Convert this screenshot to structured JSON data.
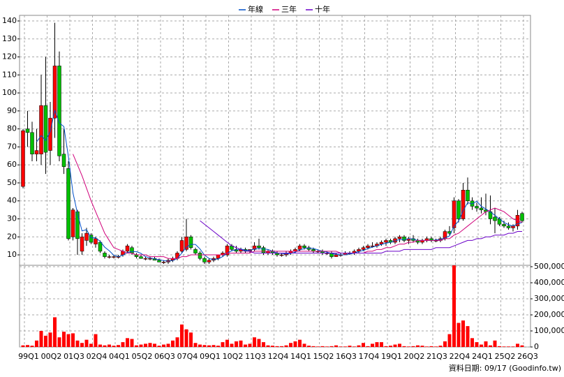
{
  "chart_data": [
    {
      "type": "candlestick",
      "legend": "top",
      "up_color": "#ff0000",
      "down_color": "#00c000",
      "wick_color": "#000000",
      "grid": true,
      "categories": [
        "99Q1",
        null,
        null,
        null,
        null,
        "00Q2",
        null,
        null,
        null,
        null,
        "01Q3",
        null,
        null,
        null,
        null,
        "02Q4",
        null,
        null,
        null,
        null,
        "04Q1",
        null,
        null,
        null,
        null,
        "05Q2",
        null,
        null,
        null,
        null,
        "06Q3",
        null,
        null,
        null,
        null,
        "07Q4",
        null,
        null,
        null,
        null,
        "09Q1",
        null,
        null,
        null,
        null,
        "10Q2",
        null,
        null,
        null,
        null,
        "11Q3",
        null,
        null,
        null,
        null,
        "12Q4",
        null,
        null,
        null,
        null,
        "14Q1",
        null,
        null,
        null,
        null,
        "15Q2",
        null,
        null,
        null,
        null,
        "16Q3",
        null,
        null,
        null,
        null,
        "17Q4",
        null,
        null,
        null,
        null,
        "19Q1",
        null,
        null,
        null,
        null,
        "20Q2",
        null,
        null,
        null,
        null,
        "21Q3",
        null,
        null,
        null,
        null,
        "22Q4",
        null,
        null,
        null,
        null,
        "24Q1",
        null,
        null,
        null,
        null,
        "25Q2",
        null,
        null,
        null,
        null,
        "26Q3"
      ],
      "open": [
        48,
        80,
        78,
        66,
        66,
        93,
        68,
        86,
        115,
        66,
        58,
        20,
        34,
        12,
        18,
        21,
        16,
        17,
        11,
        9,
        9,
        9,
        10,
        12,
        14,
        10,
        9,
        8,
        8,
        8,
        7,
        6,
        6,
        7,
        8,
        12,
        13,
        20,
        13,
        11,
        8,
        6,
        7,
        8,
        10,
        10,
        15,
        13,
        12,
        13,
        12,
        13,
        15,
        14,
        11,
        12,
        11,
        10,
        10,
        11,
        12,
        13,
        15,
        14,
        13,
        12,
        12,
        11,
        11,
        9,
        10,
        10,
        11,
        11,
        12,
        13,
        14,
        15,
        15,
        16,
        17,
        18,
        17,
        19,
        20,
        18,
        19,
        18,
        17,
        18,
        19,
        18,
        18,
        19,
        23,
        25,
        40,
        30,
        46,
        40,
        37,
        36,
        35,
        34,
        31,
        30,
        27,
        26,
        25,
        26,
        33
      ],
      "high": [
        80,
        90,
        84,
        80,
        110,
        120,
        95,
        139,
        123,
        80,
        62,
        36,
        35,
        22,
        25,
        22,
        20,
        18,
        12,
        10,
        10,
        10,
        13,
        16,
        15,
        11,
        10,
        9,
        9,
        9,
        8,
        7,
        8,
        9,
        12,
        20,
        30,
        21,
        14,
        12,
        9,
        8,
        9,
        10,
        12,
        16,
        16,
        15,
        14,
        14,
        13,
        17,
        19,
        15,
        13,
        13,
        12,
        11,
        12,
        13,
        14,
        16,
        16,
        15,
        14,
        13,
        13,
        12,
        12,
        11,
        11,
        12,
        12,
        13,
        14,
        15,
        16,
        17,
        17,
        18,
        19,
        19,
        20,
        21,
        21,
        20,
        21,
        19,
        19,
        20,
        20,
        19,
        20,
        24,
        26,
        42,
        41,
        50,
        53,
        42,
        39,
        42,
        44,
        43,
        36,
        31,
        29,
        28,
        27,
        35,
        34
      ],
      "low": [
        47,
        70,
        62,
        62,
        60,
        55,
        60,
        75,
        62,
        55,
        18,
        18,
        10,
        10,
        15,
        16,
        14,
        11,
        8,
        8,
        8,
        8,
        9,
        11,
        10,
        8,
        8,
        7,
        7,
        7,
        6,
        5,
        5,
        6,
        7,
        11,
        12,
        13,
        10,
        7,
        5,
        5,
        6,
        7,
        9,
        9,
        12,
        11,
        11,
        11,
        11,
        12,
        13,
        10,
        10,
        10,
        9,
        9,
        9,
        10,
        11,
        12,
        13,
        12,
        11,
        11,
        10,
        10,
        8,
        9,
        9,
        10,
        10,
        10,
        11,
        12,
        13,
        14,
        14,
        15,
        15,
        16,
        16,
        17,
        17,
        16,
        17,
        16,
        16,
        17,
        17,
        17,
        17,
        18,
        21,
        22,
        28,
        29,
        38,
        35,
        34,
        33,
        32,
        27,
        22,
        26,
        25,
        24,
        23,
        24,
        28
      ],
      "close": [
        79,
        78,
        66,
        68,
        93,
        67,
        86,
        115,
        65,
        59,
        19,
        35,
        19,
        20,
        22,
        17,
        19,
        12,
        9,
        9,
        9,
        9,
        12,
        15,
        11,
        9,
        8,
        8,
        8,
        7,
        6,
        6,
        7,
        8,
        11,
        18,
        20,
        14,
        11,
        8,
        6,
        7,
        8,
        10,
        11,
        15,
        13,
        12,
        13,
        12,
        13,
        15,
        14,
        11,
        12,
        11,
        10,
        10,
        11,
        12,
        13,
        15,
        14,
        13,
        12,
        12,
        11,
        11,
        9,
        10,
        10,
        11,
        11,
        12,
        13,
        14,
        15,
        15,
        16,
        17,
        18,
        17,
        19,
        20,
        18,
        19,
        18,
        17,
        18,
        19,
        18,
        18,
        19,
        23,
        22,
        40,
        30,
        46,
        40,
        37,
        36,
        35,
        34,
        30,
        29,
        27,
        26,
        25,
        26,
        32,
        29
      ],
      "series": [
        {
          "name": "年線",
          "color": "#0050c8",
          "values": [
            null,
            null,
            null,
            72.8,
            76.3,
            73.5,
            78.5,
            90.3,
            83.3,
            81.3,
            64.5,
            44.5,
            33,
            23.3,
            24,
            19.5,
            19.5,
            17.5,
            14.3,
            12.3,
            9.8,
            9,
            9.8,
            11.3,
            11.8,
            11.8,
            10.8,
            9,
            8.3,
            7.8,
            7.3,
            6.8,
            6.5,
            6.8,
            8,
            11,
            14.3,
            15.8,
            15.8,
            13.3,
            9.8,
            8,
            7.3,
            7.8,
            9,
            11,
            12.3,
            12.8,
            13.3,
            12.5,
            12.5,
            13.3,
            13.5,
            13.3,
            13,
            12,
            11,
            10.8,
            10.5,
            10.8,
            11.5,
            12.8,
            13.5,
            13.8,
            13.5,
            12.8,
            12,
            11.5,
            10.8,
            10.3,
            10,
            10,
            10.5,
            11,
            11.8,
            12.5,
            13.5,
            14.3,
            15,
            15.8,
            16.5,
            17,
            17.8,
            18.5,
            18.5,
            19,
            18.8,
            18,
            18,
            18,
            18,
            18.3,
            18.5,
            19.5,
            20.5,
            26,
            28.8,
            34.5,
            39,
            38.3,
            39.8,
            37,
            35.5,
            33.8,
            32,
            30,
            28,
            26.8,
            26,
            27.3,
            28
          ]
        },
        {
          "name": "三年",
          "color": "#d0007a",
          "values": [
            null,
            null,
            null,
            null,
            null,
            null,
            null,
            null,
            null,
            null,
            null,
            66,
            60,
            54,
            47,
            40,
            34,
            28,
            22,
            18,
            14,
            13,
            12,
            11,
            11,
            10,
            10,
            10,
            9,
            9,
            9,
            9,
            8,
            8,
            8,
            9,
            9,
            10,
            10,
            10,
            10,
            10,
            10,
            10,
            10,
            11,
            11,
            11,
            11,
            11,
            11,
            12,
            12,
            12,
            12,
            12,
            12,
            12,
            12,
            12,
            12,
            12,
            12,
            12,
            12,
            12,
            12,
            12,
            12,
            12,
            11,
            11,
            11,
            11,
            11,
            11,
            12,
            12,
            13,
            13,
            14,
            14,
            15,
            16,
            16,
            17,
            17,
            18,
            18,
            18,
            18,
            18,
            18,
            19,
            19,
            21,
            22,
            24,
            26,
            28,
            30,
            32,
            34,
            35,
            36,
            35,
            34,
            32,
            30,
            29,
            28
          ]
        },
        {
          "name": "十年",
          "color": "#6a00c8",
          "values": [
            null,
            null,
            null,
            null,
            null,
            null,
            null,
            null,
            null,
            null,
            null,
            null,
            null,
            null,
            null,
            null,
            null,
            null,
            null,
            null,
            null,
            null,
            null,
            null,
            null,
            null,
            null,
            null,
            null,
            null,
            null,
            null,
            null,
            null,
            null,
            null,
            null,
            null,
            null,
            29,
            27,
            25,
            23,
            21,
            19,
            17,
            15,
            14,
            13,
            12,
            12,
            11,
            11,
            11,
            11,
            11,
            11,
            11,
            11,
            11,
            11,
            11,
            11,
            11,
            11,
            11,
            11,
            11,
            11,
            11,
            11,
            11,
            11,
            11,
            11,
            11,
            11,
            11,
            11,
            11,
            12,
            12,
            12,
            12,
            13,
            13,
            13,
            13,
            13,
            13,
            13,
            14,
            14,
            14,
            14,
            15,
            16,
            17,
            18,
            18,
            19,
            19,
            20,
            20,
            21,
            21,
            21,
            22,
            22,
            23,
            23
          ]
        }
      ],
      "ylim": [
        4.2,
        143.1
      ],
      "yticks": [
        10,
        20,
        30,
        40,
        50,
        60,
        70,
        80,
        90,
        100,
        110,
        120,
        130,
        140
      ],
      "note": "資料日期: 09/17 (Goodinfo.tw)"
    },
    {
      "type": "bar",
      "color": "#ff0000",
      "grid": true,
      "values": [
        10000,
        12000,
        8000,
        40000,
        100000,
        70000,
        90000,
        185000,
        60000,
        95000,
        80000,
        85000,
        40000,
        25000,
        45000,
        20000,
        80000,
        15000,
        10000,
        15000,
        8000,
        12000,
        30000,
        55000,
        50000,
        10000,
        15000,
        20000,
        25000,
        20000,
        8000,
        15000,
        20000,
        40000,
        60000,
        140000,
        110000,
        90000,
        25000,
        15000,
        12000,
        10000,
        12000,
        8000,
        30000,
        45000,
        20000,
        35000,
        40000,
        15000,
        20000,
        60000,
        50000,
        30000,
        10000,
        8000,
        5000,
        5000,
        10000,
        25000,
        35000,
        45000,
        20000,
        8000,
        5000,
        3000,
        5000,
        3000,
        5000,
        10000,
        3000,
        3000,
        8000,
        3000,
        10000,
        25000,
        5000,
        20000,
        30000,
        30000,
        5000,
        8000,
        15000,
        20000,
        5000,
        3000,
        5000,
        10000,
        8000,
        3000,
        5000,
        3000,
        8000,
        35000,
        80000,
        508000,
        150000,
        165000,
        130000,
        55000,
        30000,
        15000,
        35000,
        10000,
        40000,
        5000,
        3000,
        3000,
        3000,
        20000,
        10000
      ],
      "ylim": [
        0,
        508800
      ],
      "yticks": [
        0,
        {
          "value": 100000,
          "label": "100,000"
        },
        {
          "value": 200000,
          "label": "200,000"
        },
        {
          "value": 300000,
          "label": "300,000"
        },
        {
          "value": 400000,
          "label": "400,000"
        },
        {
          "value": 500000,
          "label": "500,000"
        }
      ]
    }
  ]
}
